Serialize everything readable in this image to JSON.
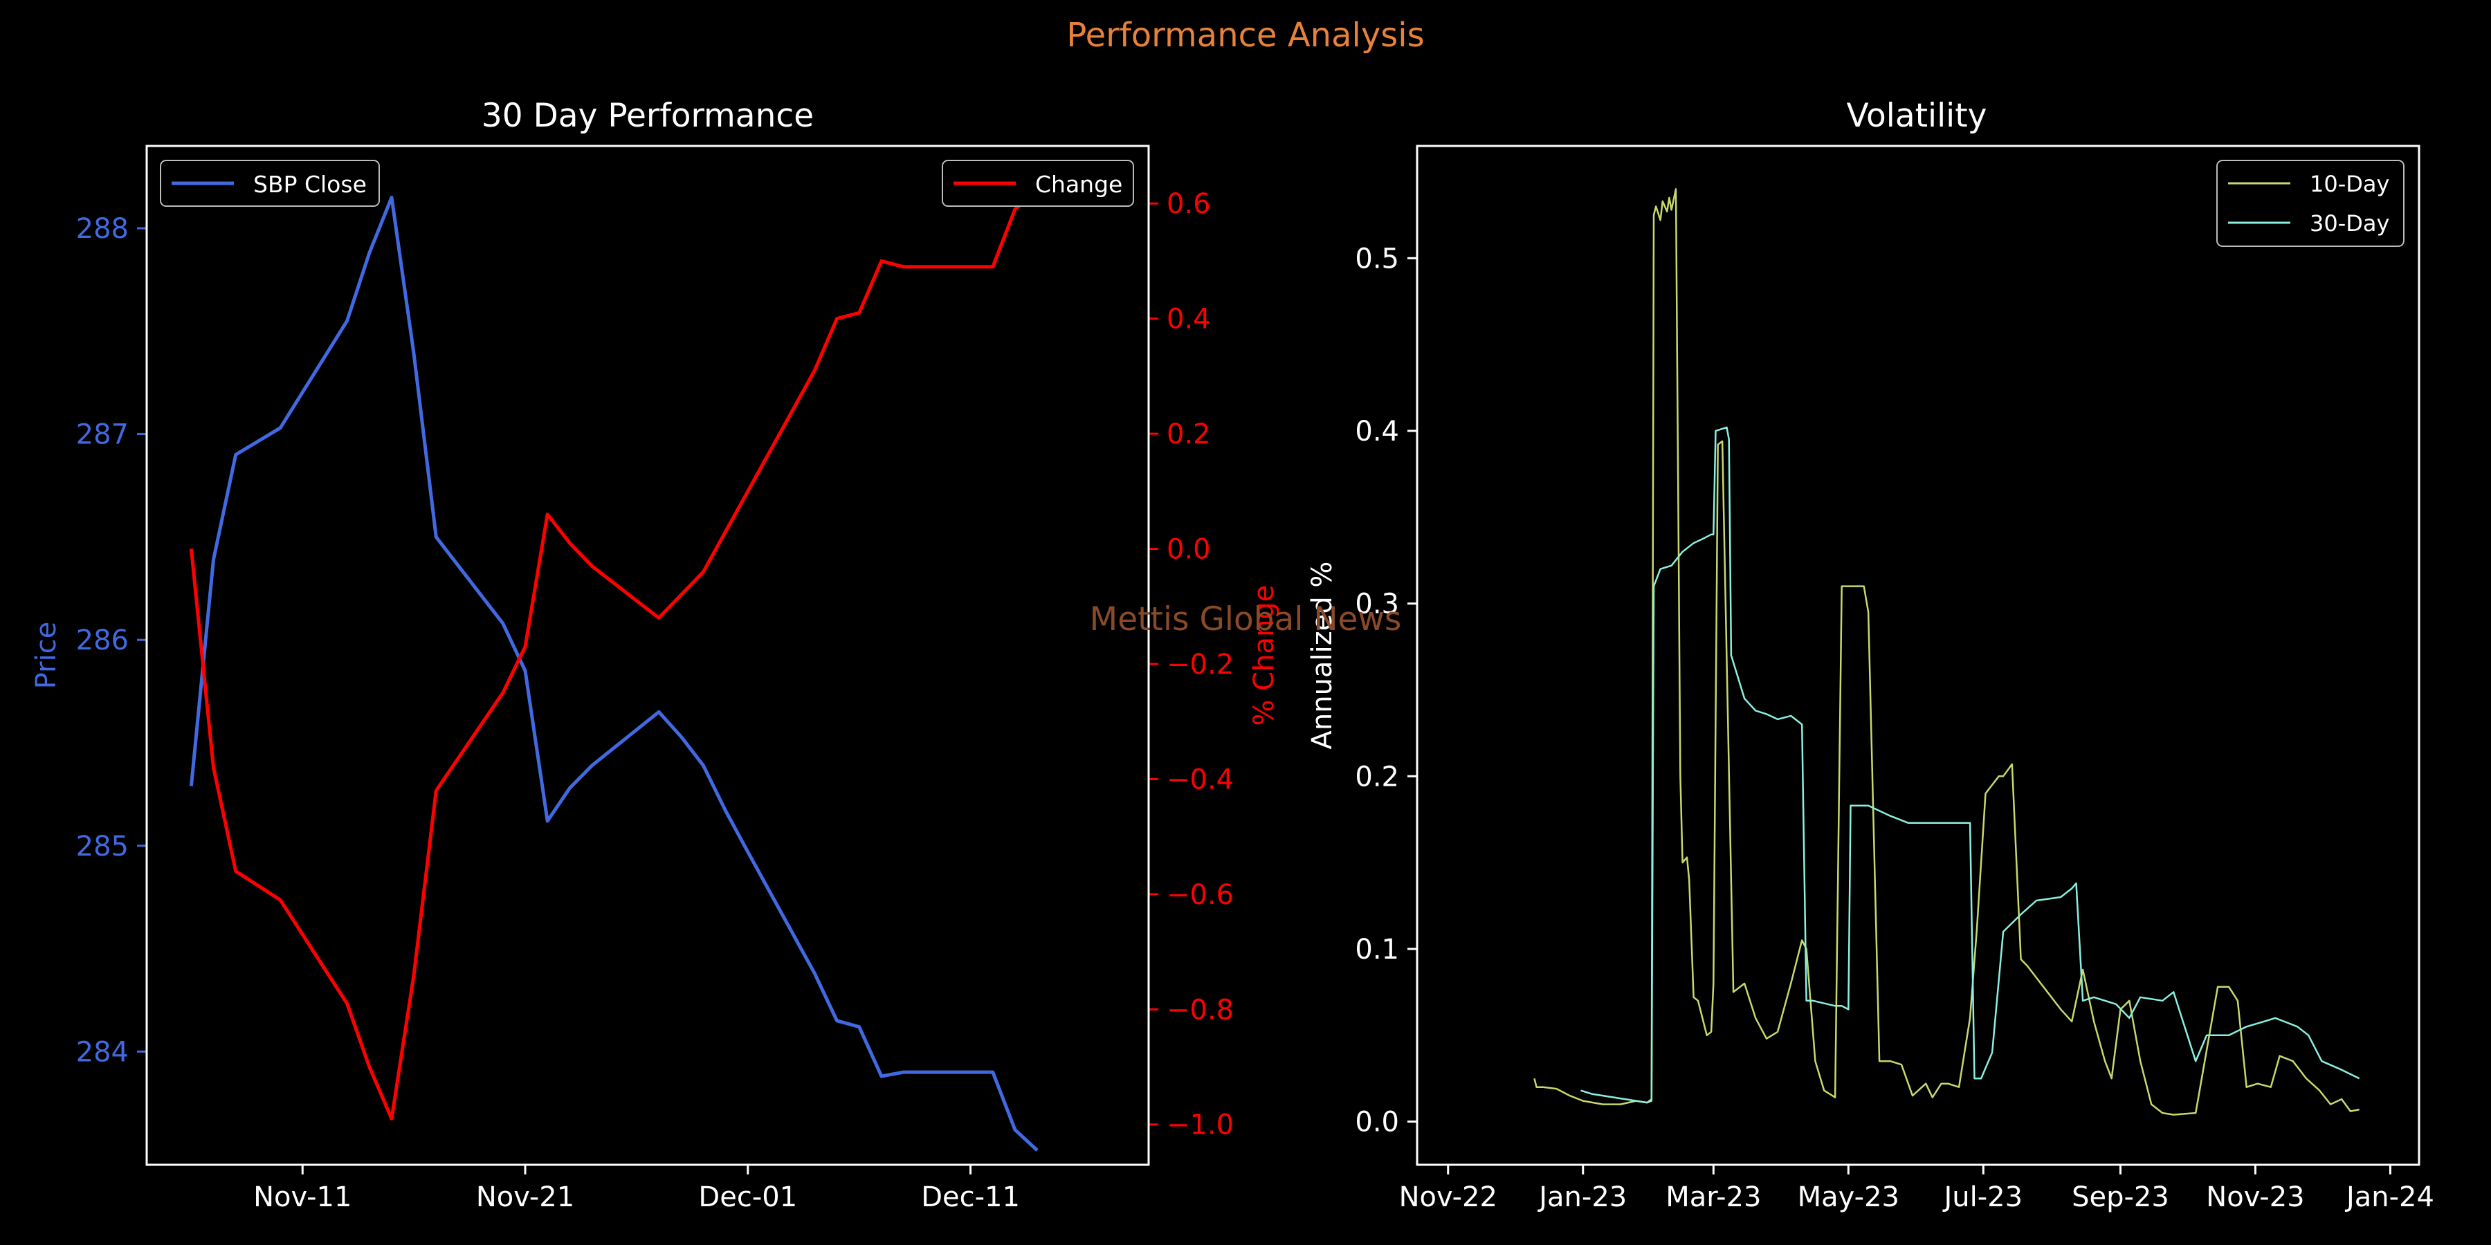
{
  "suptitle": "Performance Analysis",
  "watermark": "Mettis Global News",
  "colors": {
    "background": "#000000",
    "axes": "#ffffff",
    "price": "#4169e1",
    "change": "#ff0000",
    "suptitle": "#e8823a",
    "watermark": "#8a4a2a",
    "vol10": "#c8d86c",
    "vol30": "#8af0e0"
  },
  "chart_data": [
    {
      "type": "line",
      "title": "30 Day Performance",
      "ylabel": "Price",
      "ylabel_right": "% Change",
      "x_kind": "date",
      "xlim": [
        "2023-11-04",
        "2023-12-19"
      ],
      "xticks": [
        {
          "date": "2023-11-11",
          "label": "Nov-11"
        },
        {
          "date": "2023-11-21",
          "label": "Nov-21"
        },
        {
          "date": "2023-12-01",
          "label": "Dec-01"
        },
        {
          "date": "2023-12-11",
          "label": "Dec-11"
        }
      ],
      "ylim": [
        283.45,
        288.4
      ],
      "yticks": [
        284,
        285,
        286,
        287,
        288
      ],
      "ylim_right": [
        -1.07,
        0.7
      ],
      "yticks_right": [
        -1.0,
        -0.8,
        -0.6,
        -0.4,
        -0.2,
        0.0,
        0.2,
        0.4,
        0.6
      ],
      "yticks_right_labels": [
        "−1.0",
        "−0.8",
        "−0.6",
        "−0.4",
        "−0.2",
        "0.0",
        "0.2",
        "0.4",
        "0.6"
      ],
      "series": [
        {
          "name": "SBP Close",
          "axis": "left",
          "legend_position": "upper-left",
          "x": [
            "2023-11-06",
            "2023-11-07",
            "2023-11-08",
            "2023-11-10",
            "2023-11-13",
            "2023-11-14",
            "2023-11-15",
            "2023-11-16",
            "2023-11-17",
            "2023-11-20",
            "2023-11-21",
            "2023-11-22",
            "2023-11-23",
            "2023-11-24",
            "2023-11-27",
            "2023-11-28",
            "2023-11-29",
            "2023-11-30",
            "2023-12-01",
            "2023-12-04",
            "2023-12-05",
            "2023-12-06",
            "2023-12-07",
            "2023-12-08",
            "2023-12-11",
            "2023-12-12",
            "2023-12-13",
            "2023-12-14"
          ],
          "values": [
            285.29,
            286.39,
            286.9,
            287.03,
            287.55,
            287.88,
            288.15,
            287.39,
            286.5,
            286.08,
            285.85,
            285.12,
            285.28,
            285.39,
            285.65,
            285.53,
            285.39,
            285.17,
            284.97,
            284.38,
            284.15,
            284.12,
            283.88,
            283.9,
            283.9,
            283.9,
            283.62,
            283.52
          ]
        },
        {
          "name": "Change",
          "axis": "right",
          "legend_position": "upper-right",
          "x": [
            "2023-11-06",
            "2023-11-07",
            "2023-11-08",
            "2023-11-10",
            "2023-11-13",
            "2023-11-14",
            "2023-11-15",
            "2023-11-16",
            "2023-11-17",
            "2023-11-20",
            "2023-11-21",
            "2023-11-22",
            "2023-11-23",
            "2023-11-24",
            "2023-11-27",
            "2023-11-28",
            "2023-11-29",
            "2023-11-30",
            "2023-12-01",
            "2023-12-04",
            "2023-12-05",
            "2023-12-06",
            "2023-12-07",
            "2023-12-08",
            "2023-12-11",
            "2023-12-12",
            "2023-12-13",
            "2023-12-14"
          ],
          "values": [
            0.0,
            -0.38,
            -0.56,
            -0.61,
            -0.79,
            -0.9,
            -0.99,
            -0.74,
            -0.42,
            -0.25,
            -0.17,
            0.06,
            0.01,
            -0.03,
            -0.12,
            -0.08,
            -0.04,
            0.03,
            0.1,
            0.31,
            0.4,
            0.41,
            0.5,
            0.49,
            0.49,
            0.49,
            0.59,
            0.62
          ]
        }
      ]
    },
    {
      "type": "line",
      "title": "Volatility",
      "ylabel": "Annualized %",
      "x_kind": "date",
      "xlim": [
        "2022-10-18",
        "2024-01-14"
      ],
      "xticks": [
        {
          "date": "2022-11-01",
          "label": "Nov-22"
        },
        {
          "date": "2023-01-01",
          "label": "Jan-23"
        },
        {
          "date": "2023-03-01",
          "label": "Mar-23"
        },
        {
          "date": "2023-05-01",
          "label": "May-23"
        },
        {
          "date": "2023-07-01",
          "label": "Jul-23"
        },
        {
          "date": "2023-09-01",
          "label": "Sep-23"
        },
        {
          "date": "2023-11-01",
          "label": "Nov-23"
        },
        {
          "date": "2024-01-01",
          "label": "Jan-24"
        }
      ],
      "ylim": [
        -0.025,
        0.565
      ],
      "yticks": [
        0.0,
        0.1,
        0.2,
        0.3,
        0.4,
        0.5
      ],
      "legend_position": "upper-right",
      "series": [
        {
          "name": "10-Day",
          "x": [
            "2022-12-10",
            "2022-12-11",
            "2022-12-14",
            "2022-12-20",
            "2022-12-26",
            "2023-01-01",
            "2023-01-10",
            "2023-01-18",
            "2023-01-25",
            "2023-01-30",
            "2023-02-01",
            "2023-02-02",
            "2023-02-03",
            "2023-02-05",
            "2023-02-06",
            "2023-02-08",
            "2023-02-09",
            "2023-02-10",
            "2023-02-12",
            "2023-02-14",
            "2023-02-15",
            "2023-02-17",
            "2023-02-18",
            "2023-02-20",
            "2023-02-22",
            "2023-02-26",
            "2023-02-28",
            "2023-03-01",
            "2023-03-03",
            "2023-03-05",
            "2023-03-10",
            "2023-03-15",
            "2023-03-20",
            "2023-03-25",
            "2023-03-30",
            "2023-04-05",
            "2023-04-10",
            "2023-04-12",
            "2023-04-16",
            "2023-04-20",
            "2023-04-25",
            "2023-04-28",
            "2023-05-05",
            "2023-05-08",
            "2023-05-10",
            "2023-05-15",
            "2023-05-20",
            "2023-05-25",
            "2023-05-30",
            "2023-06-05",
            "2023-06-08",
            "2023-06-12",
            "2023-06-15",
            "2023-06-20",
            "2023-06-25",
            "2023-06-28",
            "2023-07-02",
            "2023-07-05",
            "2023-07-08",
            "2023-07-10",
            "2023-07-14",
            "2023-07-18",
            "2023-07-21",
            "2023-07-24",
            "2023-07-27",
            "2023-07-30",
            "2023-08-05",
            "2023-08-10",
            "2023-08-15",
            "2023-08-20",
            "2023-08-25",
            "2023-08-28",
            "2023-09-01",
            "2023-09-05",
            "2023-09-10",
            "2023-09-15",
            "2023-09-20",
            "2023-09-25",
            "2023-10-05",
            "2023-10-15",
            "2023-10-20",
            "2023-10-24",
            "2023-10-28",
            "2023-11-02",
            "2023-11-08",
            "2023-11-12",
            "2023-11-18",
            "2023-11-24",
            "2023-11-30",
            "2023-12-05",
            "2023-12-10",
            "2023-12-14",
            "2023-12-18"
          ],
          "values": [
            0.025,
            0.02,
            0.02,
            0.019,
            0.015,
            0.012,
            0.01,
            0.01,
            0.012,
            0.011,
            0.013,
            0.525,
            0.53,
            0.522,
            0.533,
            0.527,
            0.535,
            0.528,
            0.54,
            0.2,
            0.15,
            0.153,
            0.14,
            0.072,
            0.07,
            0.05,
            0.052,
            0.08,
            0.392,
            0.394,
            0.075,
            0.08,
            0.06,
            0.048,
            0.052,
            0.08,
            0.105,
            0.1,
            0.035,
            0.018,
            0.014,
            0.31,
            0.31,
            0.31,
            0.295,
            0.035,
            0.035,
            0.033,
            0.015,
            0.022,
            0.014,
            0.022,
            0.022,
            0.02,
            0.06,
            0.11,
            0.19,
            0.195,
            0.2,
            0.2,
            0.207,
            0.094,
            0.09,
            0.085,
            0.08,
            0.075,
            0.065,
            0.058,
            0.088,
            0.058,
            0.035,
            0.025,
            0.065,
            0.07,
            0.035,
            0.01,
            0.005,
            0.004,
            0.005,
            0.078,
            0.078,
            0.07,
            0.02,
            0.022,
            0.02,
            0.038,
            0.035,
            0.025,
            0.018,
            0.01,
            0.013,
            0.006,
            0.007
          ]
        },
        {
          "name": "30-Day",
          "x": [
            "2022-12-31",
            "2023-01-05",
            "2023-01-10",
            "2023-01-15",
            "2023-01-20",
            "2023-01-25",
            "2023-01-30",
            "2023-02-01",
            "2023-02-02",
            "2023-02-05",
            "2023-02-10",
            "2023-02-15",
            "2023-02-20",
            "2023-02-25",
            "2023-02-28",
            "2023-03-01",
            "2023-03-02",
            "2023-03-07",
            "2023-03-08",
            "2023-03-09",
            "2023-03-15",
            "2023-03-20",
            "2023-03-25",
            "2023-03-30",
            "2023-04-05",
            "2023-04-10",
            "2023-04-12",
            "2023-04-15",
            "2023-04-25",
            "2023-04-28",
            "2023-05-01",
            "2023-05-02",
            "2023-05-10",
            "2023-05-20",
            "2023-05-28",
            "2023-06-05",
            "2023-06-15",
            "2023-06-20",
            "2023-06-25",
            "2023-06-27",
            "2023-06-30",
            "2023-07-05",
            "2023-07-10",
            "2023-07-18",
            "2023-07-25",
            "2023-08-05",
            "2023-08-10",
            "2023-08-12",
            "2023-08-15",
            "2023-08-20",
            "2023-08-30",
            "2023-09-05",
            "2023-09-10",
            "2023-09-20",
            "2023-09-25",
            "2023-10-05",
            "2023-10-10",
            "2023-10-20",
            "2023-10-28",
            "2023-11-05",
            "2023-11-10",
            "2023-11-20",
            "2023-11-25",
            "2023-12-01",
            "2023-12-10",
            "2023-12-18"
          ],
          "values": [
            0.018,
            0.016,
            0.015,
            0.014,
            0.013,
            0.012,
            0.011,
            0.012,
            0.31,
            0.32,
            0.322,
            0.33,
            0.335,
            0.338,
            0.34,
            0.34,
            0.4,
            0.402,
            0.395,
            0.27,
            0.245,
            0.238,
            0.236,
            0.233,
            0.235,
            0.23,
            0.07,
            0.07,
            0.067,
            0.067,
            0.065,
            0.183,
            0.183,
            0.177,
            0.173,
            0.173,
            0.173,
            0.173,
            0.173,
            0.025,
            0.025,
            0.04,
            0.11,
            0.12,
            0.128,
            0.13,
            0.135,
            0.138,
            0.07,
            0.072,
            0.068,
            0.06,
            0.072,
            0.07,
            0.075,
            0.035,
            0.05,
            0.05,
            0.055,
            0.058,
            0.06,
            0.055,
            0.05,
            0.035,
            0.03,
            0.025
          ]
        }
      ]
    }
  ]
}
